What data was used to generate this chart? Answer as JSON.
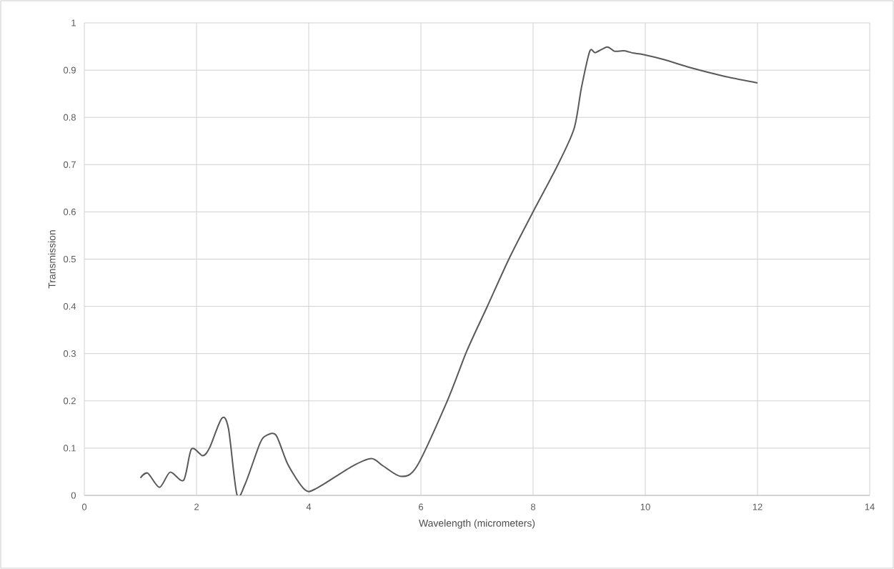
{
  "chart_data": {
    "type": "line",
    "xlabel": "Wavelength (micrometers)",
    "ylabel": "Transmission",
    "xlim": [
      0,
      14
    ],
    "ylim": [
      0,
      1
    ],
    "xticks": [
      0,
      2,
      4,
      6,
      8,
      10,
      12,
      14
    ],
    "yticks": [
      0,
      0.1,
      0.2,
      0.3,
      0.4,
      0.5,
      0.6,
      0.7,
      0.8,
      0.9,
      1
    ],
    "grid": true,
    "marker": "none",
    "line_style": "solid",
    "series": [
      {
        "color": "#595959",
        "x": [
          1.0,
          1.13,
          1.34,
          1.53,
          1.77,
          1.91,
          2.11,
          2.23,
          2.45,
          2.57,
          2.72,
          2.87,
          3.13,
          3.25,
          3.42,
          3.63,
          3.93,
          4.14,
          4.78,
          5.12,
          5.33,
          5.65,
          5.93,
          6.47,
          6.82,
          7.18,
          7.58,
          7.99,
          8.43,
          8.73,
          8.86,
          9.01,
          9.11,
          9.32,
          9.45,
          9.62,
          9.79,
          9.96,
          10.34,
          10.81,
          11.41,
          12.0
        ],
        "values": [
          0.037,
          0.047,
          0.017,
          0.049,
          0.032,
          0.098,
          0.084,
          0.1,
          0.163,
          0.141,
          0.002,
          0.025,
          0.11,
          0.127,
          0.127,
          0.065,
          0.012,
          0.015,
          0.062,
          0.078,
          0.062,
          0.04,
          0.062,
          0.2,
          0.306,
          0.399,
          0.503,
          0.598,
          0.697,
          0.776,
          0.862,
          0.94,
          0.937,
          0.949,
          0.94,
          0.941,
          0.936,
          0.933,
          0.922,
          0.905,
          0.887,
          0.873
        ]
      }
    ]
  }
}
